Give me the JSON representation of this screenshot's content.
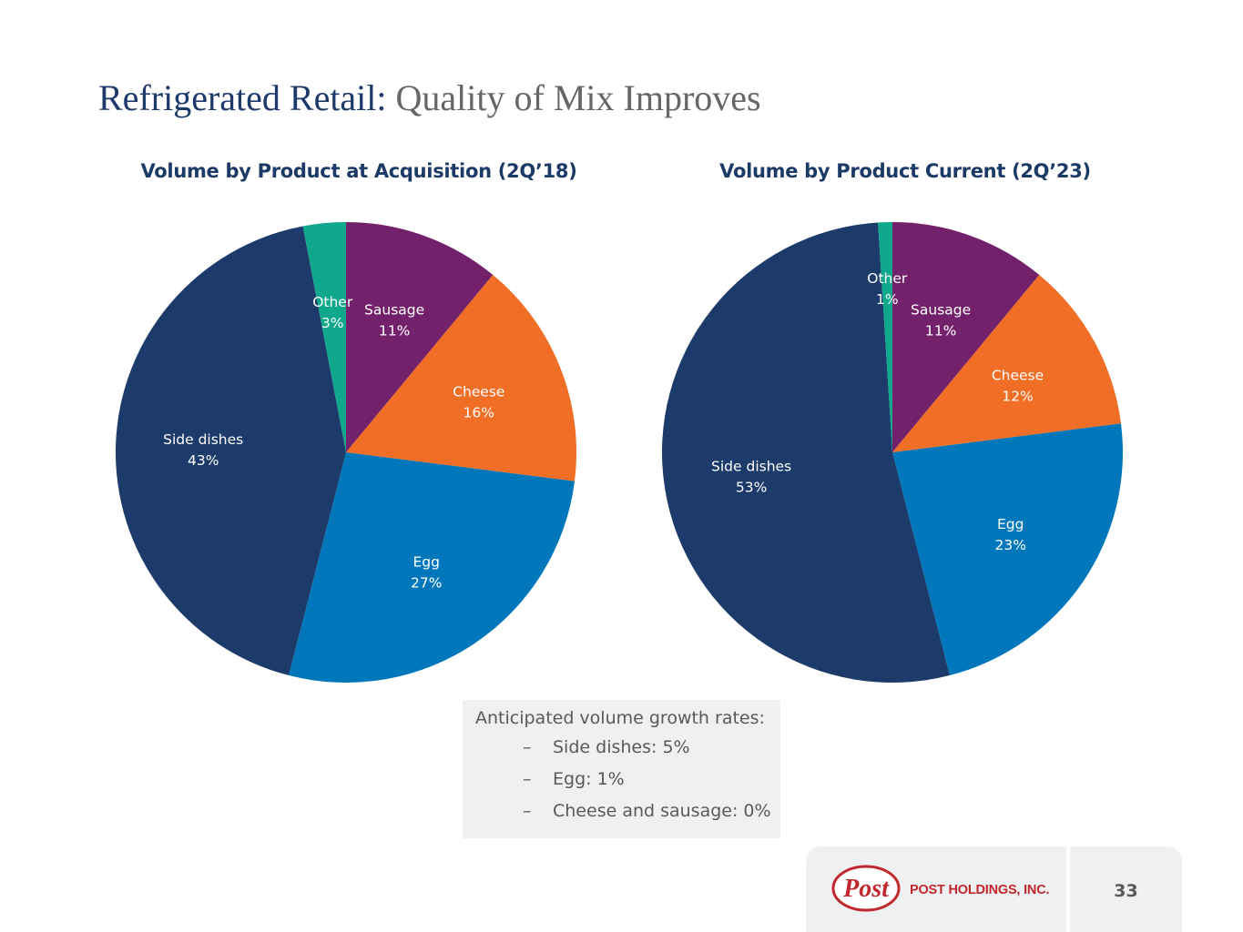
{
  "title": {
    "lead": "Refrigerated Retail:",
    "rest": " Quality of Mix Improves"
  },
  "colors": {
    "sausage": "#74216c",
    "cheese": "#f06e25",
    "egg": "#0077bb",
    "side_dishes": "#1c3b6b",
    "other": "#10a88c"
  },
  "chart_data": [
    {
      "type": "pie",
      "title": "Volume by Product at Acquisition (2Q’18)",
      "slices": [
        {
          "label": "Sausage",
          "value": 11,
          "display": "11%",
          "color_key": "sausage"
        },
        {
          "label": "Cheese",
          "value": 16,
          "display": "16%",
          "color_key": "cheese"
        },
        {
          "label": "Egg",
          "value": 27,
          "display": "27%",
          "color_key": "egg"
        },
        {
          "label": "Side dishes",
          "value": 43,
          "display": "43%",
          "color_key": "side_dishes"
        },
        {
          "label": "Other",
          "value": 3,
          "display": "3%",
          "color_key": "other"
        }
      ]
    },
    {
      "type": "pie",
      "title": "Volume by Product Current (2Q’23)",
      "slices": [
        {
          "label": "Sausage",
          "value": 11,
          "display": "11%",
          "color_key": "sausage"
        },
        {
          "label": "Cheese",
          "value": 12,
          "display": "12%",
          "color_key": "cheese"
        },
        {
          "label": "Egg",
          "value": 23,
          "display": "23%",
          "color_key": "egg"
        },
        {
          "label": "Side dishes",
          "value": 53,
          "display": "53%",
          "color_key": "side_dishes"
        },
        {
          "label": "Other",
          "value": 1,
          "display": "1%",
          "color_key": "other"
        }
      ]
    }
  ],
  "note": {
    "heading": "Anticipated volume growth rates:",
    "bullet_marker": "–",
    "items": [
      "Side dishes: 5%",
      "Egg: 1%",
      "Cheese and sausage: 0%"
    ]
  },
  "footer": {
    "logo_text": "Post",
    "company_name": "POST HOLDINGS, INC.",
    "page_number": "33"
  }
}
